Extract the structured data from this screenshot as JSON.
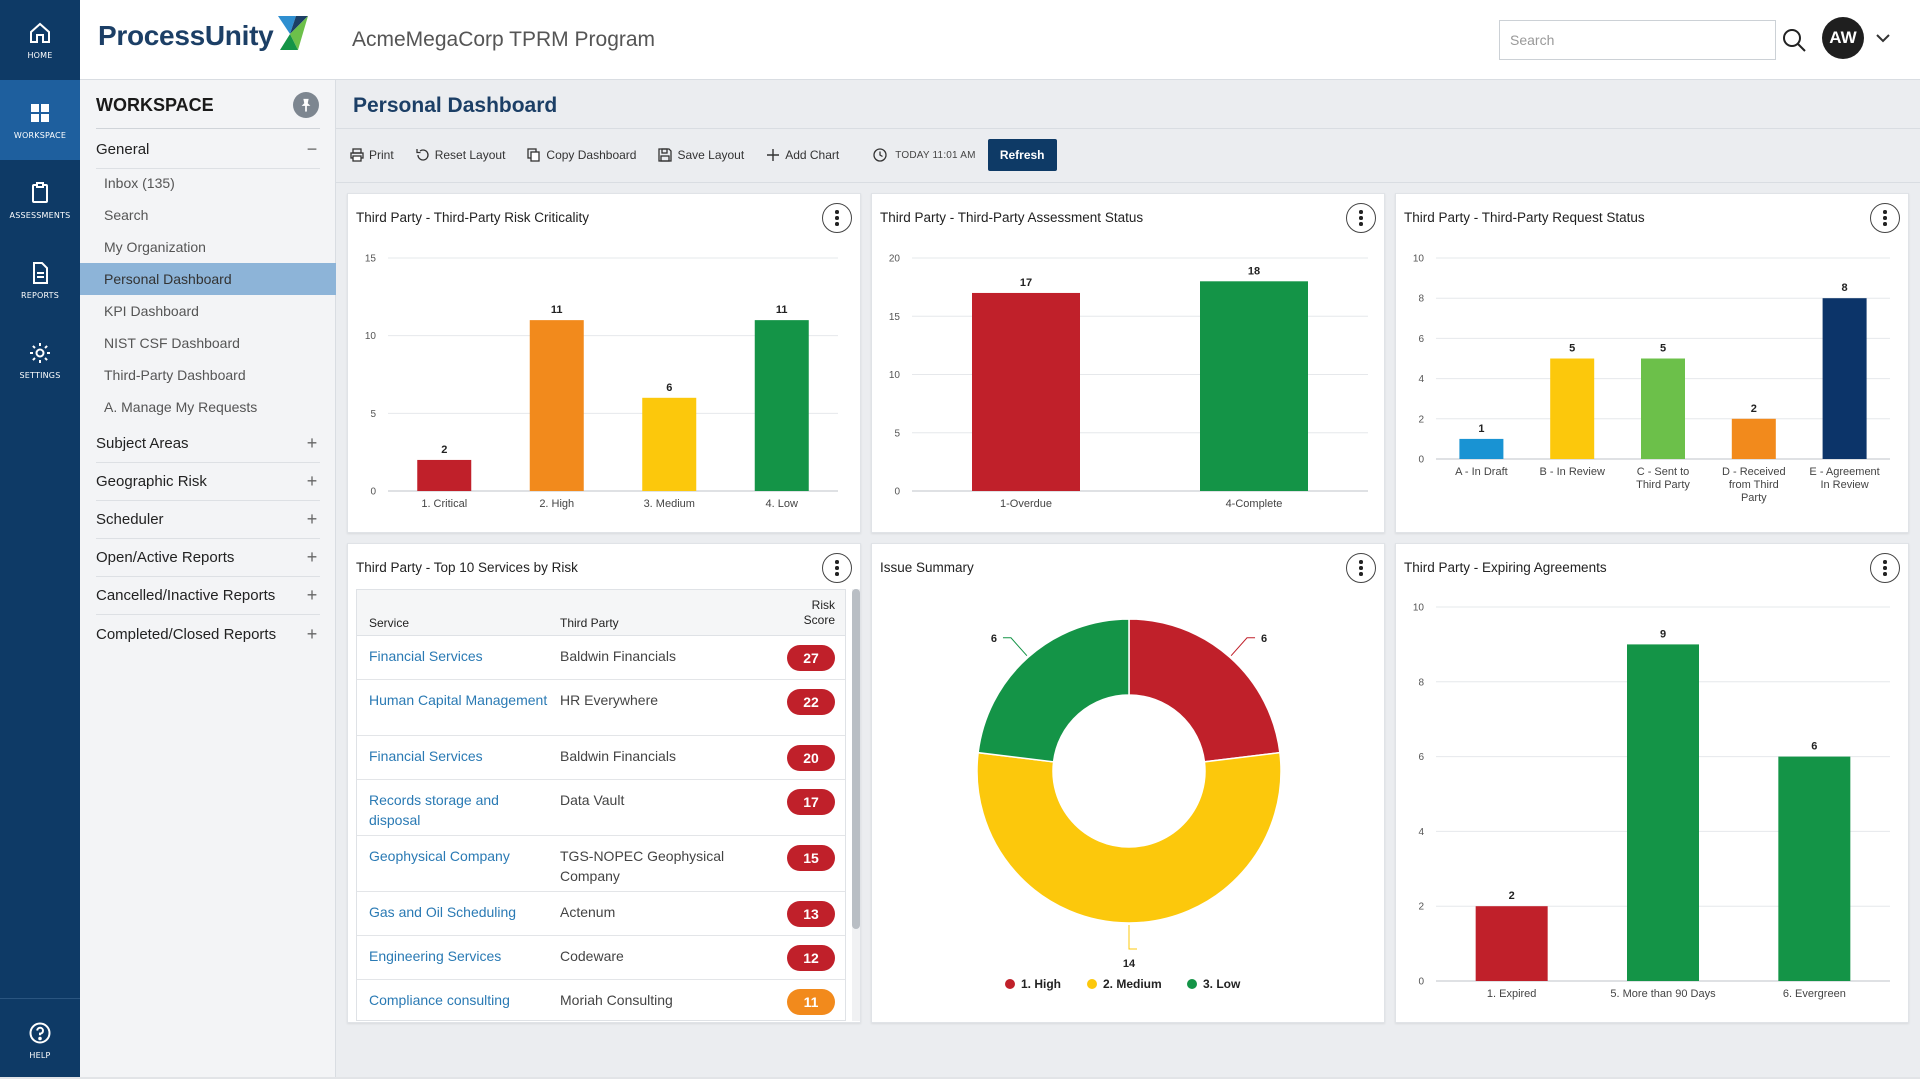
{
  "nav": {
    "items": [
      {
        "label": "HOME",
        "icon": "home-icon"
      },
      {
        "label": "WORKSPACE",
        "icon": "grid-icon"
      },
      {
        "label": "ASSESSMENTS",
        "icon": "clipboard-icon"
      },
      {
        "label": "REPORTS",
        "icon": "document-icon"
      },
      {
        "label": "SETTINGS",
        "icon": "gear-icon"
      }
    ],
    "help": "HELP"
  },
  "header": {
    "logo": "ProcessUnity",
    "program": "AcmeMegaCorp TPRM Program",
    "search_placeholder": "Search",
    "avatar": "AW"
  },
  "sidebar": {
    "title": "WORKSPACE",
    "general": {
      "label": "General",
      "items": [
        "Inbox (135)",
        "Search",
        "My Organization",
        "Personal Dashboard",
        "KPI Dashboard",
        "NIST CSF Dashboard",
        "Third-Party Dashboard",
        "A. Manage My Requests"
      ]
    },
    "sections": [
      "Subject Areas",
      "Geographic Risk",
      "Scheduler",
      "Open/Active Reports",
      "Cancelled/Inactive Reports",
      "Completed/Closed Reports"
    ]
  },
  "main": {
    "title": "Personal Dashboard",
    "toolbar": {
      "print": "Print",
      "reset": "Reset Layout",
      "copy": "Copy Dashboard",
      "save": "Save Layout",
      "add": "Add Chart",
      "time": "TODAY 11:01 AM",
      "refresh": "Refresh"
    }
  },
  "colors": {
    "red": "#c0202a",
    "orange": "#f28a1c",
    "yellow": "#fcc80c",
    "green": "#149447",
    "lightgreen": "#6cc04a",
    "blue": "#1993d3",
    "navy": "#0c3469",
    "axis": "#555555"
  },
  "chart_data": [
    {
      "id": "criticality",
      "type": "bar",
      "title": "Third Party - Third-Party Risk Criticality",
      "categories": [
        "1. Critical",
        "2. High",
        "3. Medium",
        "4. Low"
      ],
      "values": [
        2,
        11,
        6,
        11
      ],
      "colors": [
        "#c0202a",
        "#f28a1c",
        "#fcc80c",
        "#149447"
      ],
      "yticks": [
        0,
        5,
        10,
        15
      ],
      "ylim": [
        0,
        15
      ]
    },
    {
      "id": "assessment",
      "type": "bar",
      "title": "Third Party - Third-Party Assessment Status",
      "categories": [
        "1-Overdue",
        "4-Complete"
      ],
      "values": [
        17,
        18
      ],
      "colors": [
        "#c0202a",
        "#149447"
      ],
      "yticks": [
        0,
        5,
        10,
        15,
        20
      ],
      "ylim": [
        0,
        20
      ]
    },
    {
      "id": "request",
      "type": "bar",
      "title": "Third Party - Third-Party Request Status",
      "categories": [
        [
          "A - In Draft"
        ],
        [
          "B - In Review"
        ],
        [
          "C - Sent to",
          "Third Party"
        ],
        [
          "D - Received",
          "from Third",
          "Party"
        ],
        [
          "E - Agreement",
          "In Review"
        ]
      ],
      "values": [
        1,
        5,
        5,
        2,
        8
      ],
      "colors": [
        "#1993d3",
        "#fcc80c",
        "#6cc04a",
        "#f28a1c",
        "#0c3469"
      ],
      "yticks": [
        0,
        2,
        4,
        6,
        8,
        10
      ],
      "ylim": [
        0,
        10
      ]
    },
    {
      "id": "issues",
      "type": "pie",
      "title": "Issue Summary",
      "labels": [
        "1. High",
        "2. Medium",
        "3. Low"
      ],
      "values": [
        6,
        14,
        6
      ],
      "colors": [
        "#c0202a",
        "#fcc80c",
        "#149447"
      ],
      "legend": "bottom"
    },
    {
      "id": "expiring",
      "type": "bar",
      "title": "Third Party - Expiring Agreements",
      "categories": [
        "1. Expired",
        "5. More than 90 Days",
        "6. Evergreen"
      ],
      "values": [
        2,
        9,
        6
      ],
      "colors": [
        "#c0202a",
        "#149447",
        "#149447"
      ],
      "yticks": [
        0,
        2,
        4,
        6,
        8,
        10
      ],
      "ylim": [
        0,
        10
      ]
    }
  ],
  "services_table": {
    "title": "Third Party - Top 10 Services by Risk",
    "headers": {
      "service": "Service",
      "third_party": "Third Party",
      "risk_line1": "Risk",
      "risk_line2": "Score"
    },
    "rows": [
      {
        "service": "Financial Services",
        "third_party": "Baldwin Financials",
        "score": "27",
        "color": "#c0202a"
      },
      {
        "service": "Human Capital Management",
        "third_party": "HR Everywhere",
        "score": "22",
        "color": "#c0202a"
      },
      {
        "service": "Financial Services",
        "third_party": "Baldwin Financials",
        "score": "20",
        "color": "#c0202a"
      },
      {
        "service": "Records storage and disposal",
        "third_party": "Data Vault",
        "score": "17",
        "color": "#c0202a"
      },
      {
        "service": "Geophysical Company",
        "third_party": "TGS-NOPEC Geophysical Company",
        "score": "15",
        "color": "#c0202a"
      },
      {
        "service": "Gas and Oil Scheduling",
        "third_party": "Actenum",
        "score": "13",
        "color": "#c0202a"
      },
      {
        "service": "Engineering Services",
        "third_party": "Codeware",
        "score": "12",
        "color": "#c0202a"
      },
      {
        "service": "Compliance consulting",
        "third_party": "Moriah Consulting",
        "score": "11",
        "color": "#f28a1c"
      }
    ]
  }
}
